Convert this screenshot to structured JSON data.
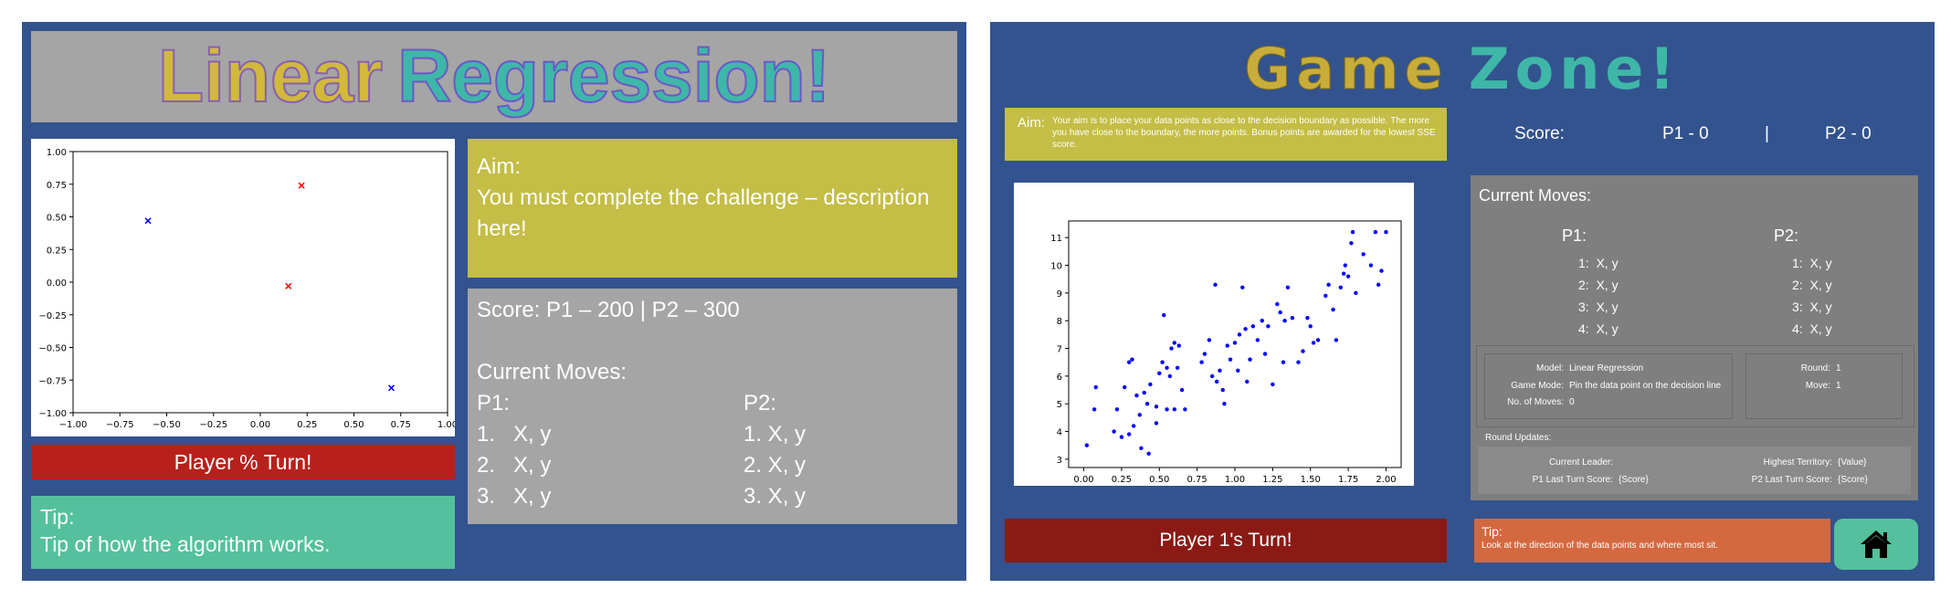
{
  "left": {
    "title_part1": "Linear",
    "title_part2": "Regression!",
    "turn_label": "Player % Turn!",
    "aim_heading": "Aim:",
    "aim_text": "You must complete the challenge – description here!",
    "score_line": "Score: P1 – 200 | P2 – 300",
    "moves_heading": "Current Moves:",
    "p1_label": "P1:",
    "p2_label": "P2:",
    "p1_moves": [
      "1.   X, y",
      "2.   X, y",
      "3.   X, y"
    ],
    "p2_moves": [
      "1. X, y",
      "2. X, y",
      "3. X, y"
    ],
    "tip_heading": "Tip:",
    "tip_text": "Tip of how the algorithm works.",
    "colors": {
      "turn_bg": "#b8211b",
      "aim_bg": "#c4bd46",
      "tip_bg": "#55c09d"
    },
    "chart_data": {
      "type": "scatter",
      "xlim": [
        -1.0,
        1.0
      ],
      "ylim": [
        -1.0,
        1.0
      ],
      "x_ticks": [
        "−1.00",
        "−0.75",
        "−0.50",
        "−0.25",
        "0.00",
        "0.25",
        "0.50",
        "0.75",
        "1.00"
      ],
      "y_ticks": [
        "1.00",
        "0.75",
        "0.50",
        "0.25",
        "0.00",
        "−0.25",
        "−0.50",
        "−0.75",
        "−1.00"
      ],
      "series": [
        {
          "color": "#0000ff",
          "marker": "x",
          "points": [
            [
              -0.6,
              0.47
            ],
            [
              0.7,
              -0.81
            ]
          ]
        },
        {
          "color": "#ff0000",
          "marker": "x",
          "points": [
            [
              0.22,
              0.74
            ],
            [
              0.15,
              -0.03
            ]
          ]
        }
      ],
      "grid": false
    }
  },
  "right": {
    "title_part1": "Game",
    "title_part2": "Zone!",
    "aim_label": "Aim:",
    "aim_text": "Your aim is to place your data points as close to the decision boundary as possible. The more you have close to the boundary, the more points. Bonus points are awarded for the lowest SSE score.",
    "score_label": "Score:",
    "score_p1": "P1 - 0",
    "score_sep": "|",
    "score_p2": "P2 - 0",
    "moves_heading": "Current Moves:",
    "p1_label": "P1:",
    "p2_label": "P2:",
    "p1_moves": [
      "1:  X, y",
      "2:  X, y",
      "3:  X, y",
      "4:  X, y"
    ],
    "p2_moves": [
      "1:  X, y",
      "2:  X, y",
      "3:  X, y",
      "4:  X, y"
    ],
    "info": {
      "model_label": "Model:",
      "model_value": "Linear Regression",
      "mode_label": "Game Mode:",
      "mode_value": "Pin the data point on the decision line",
      "moves_label": "No. of Moves:",
      "moves_value": "0",
      "round_label": "Round:",
      "round_value": "1",
      "move_label": "Move:",
      "move_value": "1"
    },
    "round_updates": {
      "heading": "Round Updates:",
      "leader_label": "Current Leader:",
      "territory_label": "Highest Territory:",
      "territory_value": "{Value}",
      "p1_last_label": "P1 Last Turn Score:",
      "p1_last_value": "{Score}",
      "p2_last_label": "P2 Last Turn Score:",
      "p2_last_value": "{Score}"
    },
    "turn_label": "Player 1's Turn!",
    "tip_heading": "Tip:",
    "tip_text": "Look at the direction of the data points and where most sit.",
    "home_icon": "home-icon",
    "colors": {
      "aim_bg": "#c4bd46",
      "turn_bg": "#8b1a15",
      "tip_bg": "#d4683f",
      "home_bg": "#55c09d"
    },
    "chart_data": {
      "type": "scatter",
      "xlim": [
        -0.1,
        2.1
      ],
      "ylim": [
        2.7,
        11.6
      ],
      "x_ticks": [
        "0.00",
        "0.25",
        "0.50",
        "0.75",
        "1.00",
        "1.25",
        "1.50",
        "1.75",
        "2.00"
      ],
      "y_ticks": [
        "3",
        "4",
        "5",
        "6",
        "7",
        "8",
        "9",
        "10",
        "11"
      ],
      "color": "#0000ff",
      "points": [
        [
          0.02,
          3.5
        ],
        [
          0.07,
          4.8
        ],
        [
          0.08,
          5.6
        ],
        [
          0.2,
          4.0
        ],
        [
          0.22,
          4.8
        ],
        [
          0.25,
          3.8
        ],
        [
          0.27,
          5.6
        ],
        [
          0.3,
          3.9
        ],
        [
          0.3,
          6.5
        ],
        [
          0.32,
          6.6
        ],
        [
          0.33,
          4.2
        ],
        [
          0.35,
          5.3
        ],
        [
          0.37,
          4.6
        ],
        [
          0.38,
          3.4
        ],
        [
          0.4,
          5.4
        ],
        [
          0.42,
          5.0
        ],
        [
          0.43,
          3.2
        ],
        [
          0.44,
          5.7
        ],
        [
          0.48,
          4.9
        ],
        [
          0.48,
          4.3
        ],
        [
          0.5,
          6.1
        ],
        [
          0.52,
          6.5
        ],
        [
          0.53,
          8.2
        ],
        [
          0.55,
          6.3
        ],
        [
          0.55,
          4.8
        ],
        [
          0.57,
          6.0
        ],
        [
          0.58,
          7.0
        ],
        [
          0.6,
          7.2
        ],
        [
          0.6,
          4.8
        ],
        [
          0.62,
          6.3
        ],
        [
          0.63,
          7.1
        ],
        [
          0.65,
          5.5
        ],
        [
          0.67,
          4.8
        ],
        [
          0.78,
          6.5
        ],
        [
          0.8,
          6.8
        ],
        [
          0.83,
          7.3
        ],
        [
          0.85,
          6.0
        ],
        [
          0.87,
          9.3
        ],
        [
          0.88,
          5.8
        ],
        [
          0.9,
          6.2
        ],
        [
          0.92,
          5.5
        ],
        [
          0.93,
          5.0
        ],
        [
          0.95,
          7.1
        ],
        [
          0.97,
          6.6
        ],
        [
          1.0,
          7.2
        ],
        [
          1.02,
          6.2
        ],
        [
          1.03,
          7.5
        ],
        [
          1.05,
          9.2
        ],
        [
          1.07,
          7.7
        ],
        [
          1.08,
          5.8
        ],
        [
          1.1,
          6.6
        ],
        [
          1.12,
          7.8
        ],
        [
          1.15,
          7.3
        ],
        [
          1.18,
          8.0
        ],
        [
          1.2,
          6.8
        ],
        [
          1.22,
          7.8
        ],
        [
          1.25,
          5.7
        ],
        [
          1.28,
          8.6
        ],
        [
          1.3,
          8.3
        ],
        [
          1.32,
          6.5
        ],
        [
          1.33,
          8.0
        ],
        [
          1.35,
          9.2
        ],
        [
          1.38,
          8.1
        ],
        [
          1.42,
          6.5
        ],
        [
          1.45,
          6.9
        ],
        [
          1.48,
          8.1
        ],
        [
          1.5,
          7.8
        ],
        [
          1.52,
          7.2
        ],
        [
          1.55,
          7.3
        ],
        [
          1.6,
          8.9
        ],
        [
          1.62,
          9.3
        ],
        [
          1.65,
          8.4
        ],
        [
          1.67,
          7.3
        ],
        [
          1.7,
          9.2
        ],
        [
          1.72,
          9.7
        ],
        [
          1.73,
          10.0
        ],
        [
          1.75,
          9.6
        ],
        [
          1.77,
          10.8
        ],
        [
          1.78,
          11.2
        ],
        [
          1.8,
          9.0
        ],
        [
          1.85,
          10.4
        ],
        [
          1.9,
          10.0
        ],
        [
          1.93,
          11.2
        ],
        [
          1.95,
          9.3
        ],
        [
          1.97,
          9.8
        ],
        [
          2.0,
          11.2
        ]
      ],
      "grid": false
    }
  }
}
